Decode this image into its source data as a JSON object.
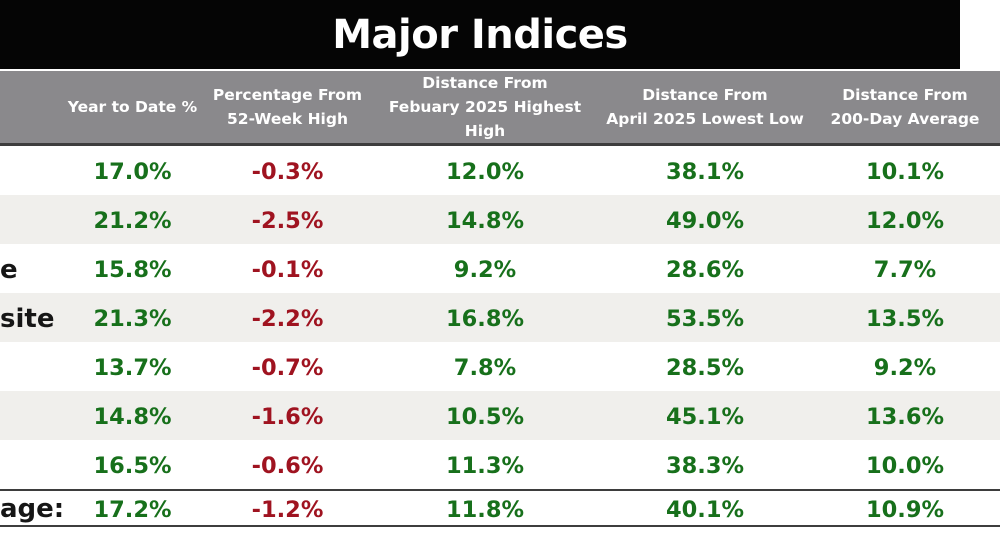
{
  "title": "Major Indices",
  "colors": {
    "title_bar_bg": "#050505",
    "title_text": "#ffffff",
    "header_band_bg": "#8a898c",
    "header_text": "#ffffff",
    "row_stripe": "#f0efec",
    "positive_green": "#17701b",
    "negative_red": "#9f1320",
    "border_dark": "#3d3d3d"
  },
  "table": {
    "headers": [
      {
        "line1": "",
        "line2": ""
      },
      {
        "line1": "Year to Date %",
        "line2": ""
      },
      {
        "line1": "Percentage From",
        "line2": "52-Week High"
      },
      {
        "line1": "Distance From",
        "line2": "Febuary 2025 Highest High"
      },
      {
        "line1": "Distance From",
        "line2": "April 2025 Lowest Low"
      },
      {
        "line1": "Distance From",
        "line2": "200-Day Average"
      }
    ],
    "rows": [
      {
        "label": "",
        "ytd": "17.0%",
        "pct_from_52w_high": "-0.3%",
        "dist_feb_high": "12.0%",
        "dist_apr_low": "38.1%",
        "dist_200d_avg": "10.1%"
      },
      {
        "label": "",
        "ytd": "21.2%",
        "pct_from_52w_high": "-2.5%",
        "dist_feb_high": "14.8%",
        "dist_apr_low": "49.0%",
        "dist_200d_avg": "12.0%"
      },
      {
        "label": "e",
        "ytd": "15.8%",
        "pct_from_52w_high": "-0.1%",
        "dist_feb_high": "9.2%",
        "dist_apr_low": "28.6%",
        "dist_200d_avg": "7.7%"
      },
      {
        "label": "site",
        "ytd": "21.3%",
        "pct_from_52w_high": "-2.2%",
        "dist_feb_high": "16.8%",
        "dist_apr_low": "53.5%",
        "dist_200d_avg": "13.5%"
      },
      {
        "label": "",
        "ytd": "13.7%",
        "pct_from_52w_high": "-0.7%",
        "dist_feb_high": "7.8%",
        "dist_apr_low": "28.5%",
        "dist_200d_avg": "9.2%"
      },
      {
        "label": "",
        "ytd": "14.8%",
        "pct_from_52w_high": "-1.6%",
        "dist_feb_high": "10.5%",
        "dist_apr_low": "45.1%",
        "dist_200d_avg": "13.6%"
      },
      {
        "label": "",
        "ytd": "16.5%",
        "pct_from_52w_high": "-0.6%",
        "dist_feb_high": "11.3%",
        "dist_apr_low": "38.3%",
        "dist_200d_avg": "10.0%"
      },
      {
        "label": "age:",
        "ytd": "17.2%",
        "pct_from_52w_high": "-1.2%",
        "dist_feb_high": "11.8%",
        "dist_apr_low": "40.1%",
        "dist_200d_avg": "10.9%"
      }
    ]
  },
  "chart_data": {
    "type": "table",
    "title": "Major Indices",
    "units": "percent",
    "columns": [
      "",
      "Year to Date %",
      "Percentage From 52-Week High",
      "Distance From Febuary 2025 Highest High",
      "Distance From April 2025 Lowest Low",
      "Distance From 200-Day Average"
    ],
    "visible_label_fragments": [
      "",
      "",
      "e",
      "site",
      "",
      "",
      "",
      "age:"
    ],
    "rows": [
      [
        17.0,
        -0.3,
        12.0,
        38.1,
        10.1
      ],
      [
        21.2,
        -2.5,
        14.8,
        49.0,
        12.0
      ],
      [
        15.8,
        -0.1,
        9.2,
        28.6,
        7.7
      ],
      [
        21.3,
        -2.2,
        16.8,
        53.5,
        13.5
      ],
      [
        13.7,
        -0.7,
        7.8,
        28.5,
        9.2
      ],
      [
        14.8,
        -1.6,
        10.5,
        45.1,
        13.6
      ],
      [
        16.5,
        -0.6,
        11.3,
        38.3,
        10.0
      ],
      [
        17.2,
        -1.2,
        11.8,
        40.1,
        10.9
      ]
    ],
    "last_row_is_average": true,
    "value_color_rule": "column 'Percentage From 52-Week High' red (negative), all other value columns green (positive)"
  }
}
